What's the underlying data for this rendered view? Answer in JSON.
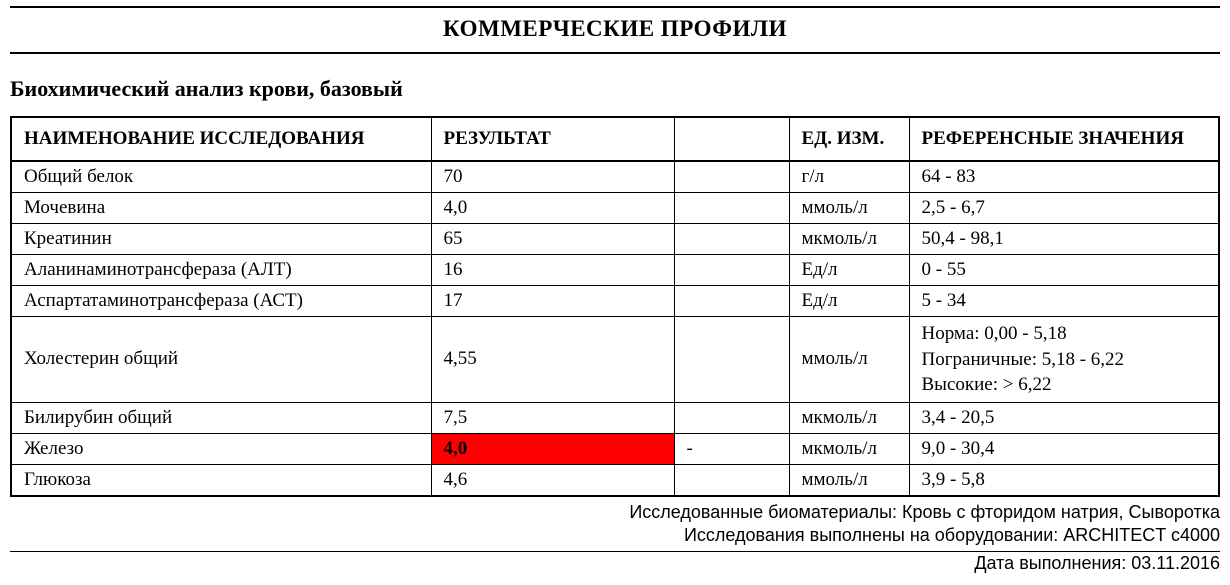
{
  "title": "КОММЕРЧЕСКИЕ ПРОФИЛИ",
  "subtitle": "Биохимический анализ крови, базовый",
  "columns": {
    "name": "НАИМЕНОВАНИЕ ИССЛЕДОВАНИЯ",
    "result": "РЕЗУЛЬТАТ",
    "blank": "",
    "unit": "ЕД. ИЗМ.",
    "ref": "РЕФЕРЕНСНЫЕ ЗНАЧЕНИЯ"
  },
  "flag_color": "#ff0000",
  "rows": [
    {
      "name": "Общий белок",
      "result": "70",
      "blank": "",
      "unit": "г/л",
      "ref": "64 - 83",
      "flagged": false
    },
    {
      "name": "Мочевина",
      "result": "4,0",
      "blank": "",
      "unit": "ммоль/л",
      "ref": "2,5 - 6,7",
      "flagged": false
    },
    {
      "name": "Креатинин",
      "result": "65",
      "blank": "",
      "unit": "мкмоль/л",
      "ref": "50,4 - 98,1",
      "flagged": false
    },
    {
      "name": "Аланинаминотрансфераза (АЛТ)",
      "result": "16",
      "blank": "",
      "unit": "Ед/л",
      "ref": "0 - 55",
      "flagged": false
    },
    {
      "name": "Аспартатаминотрансфераза (АСТ)",
      "result": "17",
      "blank": "",
      "unit": "Ед/л",
      "ref": "5 - 34",
      "flagged": false
    },
    {
      "name": "Холестерин общий",
      "result": "4,55",
      "blank": "",
      "unit": "ммоль/л",
      "ref": "Норма: 0,00 - 5,18\nПограничные: 5,18 - 6,22\nВысокие: > 6,22",
      "flagged": false,
      "ref_multiline": true
    },
    {
      "name": "Билирубин общий",
      "result": "7,5",
      "blank": "",
      "unit": "мкмоль/л",
      "ref": "3,4 - 20,5",
      "flagged": false
    },
    {
      "name": "Железо",
      "result": "4,0",
      "blank": "-",
      "unit": "мкмоль/л",
      "ref": "9,0 - 30,4",
      "flagged": true
    },
    {
      "name": "Глюкоза",
      "result": "4,6",
      "blank": "",
      "unit": "ммоль/л",
      "ref": "3,9 - 5,8",
      "flagged": false
    }
  ],
  "footer": {
    "materials": "Исследованные биоматериалы: Кровь с фторидом натрия, Сыворотка",
    "equipment": "Исследования выполнены на оборудовании: ARCHITECT с4000",
    "date": "Дата выполнения: 03.11.2016"
  }
}
